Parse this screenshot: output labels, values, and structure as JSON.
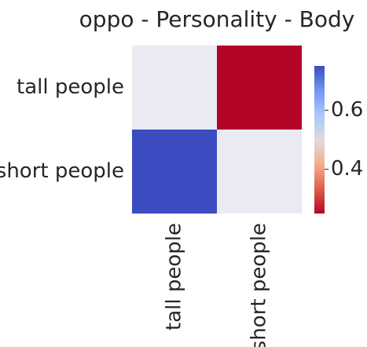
{
  "chart_data": {
    "type": "heatmap",
    "title": "oppo - Personality - Body",
    "rows": [
      "tall people",
      "short people"
    ],
    "columns": [
      "tall people",
      "short people"
    ],
    "values": [
      [
        null,
        0.25
      ],
      [
        0.75,
        null
      ]
    ],
    "missing_color": "#eaeaf2",
    "colormap": "coolwarm_r",
    "colorbar": {
      "range": [
        0.25,
        0.75
      ],
      "ticks": [
        0.4,
        0.6
      ],
      "tick_labels": [
        "0.4",
        "0.6"
      ],
      "colors": [
        "#b40426",
        "#dd5f4b",
        "#f7ac8e",
        "#dddcdc",
        "#aac7fd",
        "#7396f5",
        "#3b4cc0"
      ]
    },
    "xlabel": "",
    "ylabel": ""
  }
}
